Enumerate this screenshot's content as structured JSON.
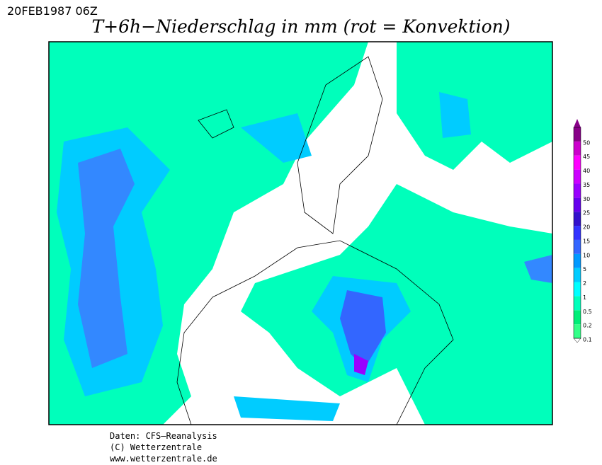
{
  "header": {
    "date": "20FEB1987 06Z",
    "title": "T+6h−Niederschlag in mm (rot = Konvektion)"
  },
  "legend": {
    "levels": [
      {
        "label": "0.1",
        "color": "#33ff88"
      },
      {
        "label": "0.2",
        "color": "#00ee77"
      },
      {
        "label": "0.5",
        "color": "#00ffbb"
      },
      {
        "label": "1",
        "color": "#00ffff"
      },
      {
        "label": "2",
        "color": "#00ccff"
      },
      {
        "label": "5",
        "color": "#0099ff"
      },
      {
        "label": "10",
        "color": "#3366ff"
      },
      {
        "label": "15",
        "color": "#3333ff"
      },
      {
        "label": "20",
        "color": "#3311cc"
      },
      {
        "label": "25",
        "color": "#6600ee"
      },
      {
        "label": "30",
        "color": "#9900ff"
      },
      {
        "label": "35",
        "color": "#cc00ff"
      },
      {
        "label": "40",
        "color": "#ff00ff"
      },
      {
        "label": "45",
        "color": "#cc00cc"
      },
      {
        "label": "50",
        "color": "#880088"
      }
    ]
  },
  "footer": {
    "lines": [
      "Daten: CFS—Reanalysis",
      "(C) Wetterzentrale",
      "www.wetterzentrale.de"
    ]
  }
}
